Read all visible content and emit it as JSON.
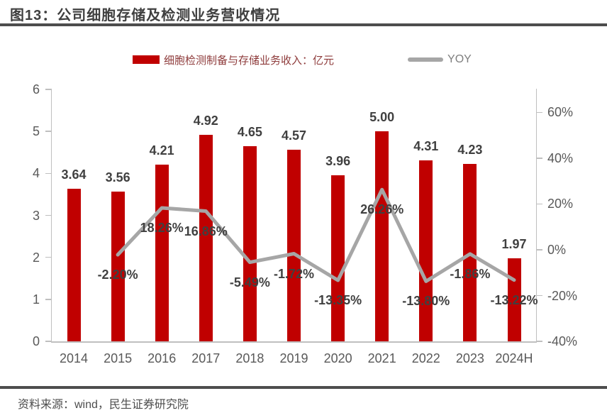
{
  "figure": {
    "title": "图13：公司细胞存储及检测业务营收情况",
    "source": "资料来源：wind，民生证券研究院"
  },
  "colors": {
    "bar": "#C00000",
    "line": "#A6A6A6",
    "legend_bar_text": "#8E3B3B",
    "legend_line_text": "#7F7F7F",
    "data_label": "#404040",
    "axis_text": "#595959",
    "rule": "#4D4D4D"
  },
  "chart_data": {
    "type": "combo_bar_line",
    "title": "图13：公司细胞存储及检测业务营收情况",
    "categories": [
      "2014",
      "2015",
      "2016",
      "2017",
      "2018",
      "2019",
      "2020",
      "2021",
      "2022",
      "2023",
      "2024H"
    ],
    "series": [
      {
        "name": "细胞检测制备与存储业务收入：亿元",
        "type": "bar",
        "axis": "left",
        "color": "#C00000",
        "values": [
          3.64,
          3.56,
          4.21,
          4.92,
          4.65,
          4.57,
          3.96,
          5.0,
          4.31,
          4.23,
          1.97
        ],
        "labels": [
          "3.64",
          "3.56",
          "4.21",
          "4.92",
          "4.65",
          "4.57",
          "3.96",
          "5.00",
          "4.31",
          "4.23",
          "1.97"
        ]
      },
      {
        "name": "YOY",
        "type": "line",
        "axis": "right",
        "color": "#A6A6A6",
        "values": [
          null,
          -2.2,
          18.26,
          16.86,
          -5.49,
          -1.72,
          -13.35,
          26.26,
          -13.8,
          -1.86,
          -13.22
        ],
        "labels": [
          null,
          "-2.20%",
          "18.26%",
          "16.86%",
          "-5.49%",
          "-1.72%",
          "-13.35%",
          "26.26%",
          "-13.80%",
          "-1.86%",
          "-13.22%"
        ]
      }
    ],
    "left_axis": {
      "min": 0,
      "max": 6,
      "tick_values": [
        0,
        1,
        2,
        3,
        4,
        5,
        6
      ],
      "tick_labels": [
        "0",
        "1",
        "2",
        "3",
        "4",
        "5",
        "6"
      ]
    },
    "right_axis": {
      "min": -40,
      "max": 70,
      "tick_values": [
        -40,
        -20,
        0,
        20,
        40,
        60
      ],
      "tick_labels": [
        "-40%",
        "-20%",
        "0%",
        "20%",
        "40%",
        "60%"
      ]
    },
    "grid": false,
    "legend_position": "top"
  }
}
